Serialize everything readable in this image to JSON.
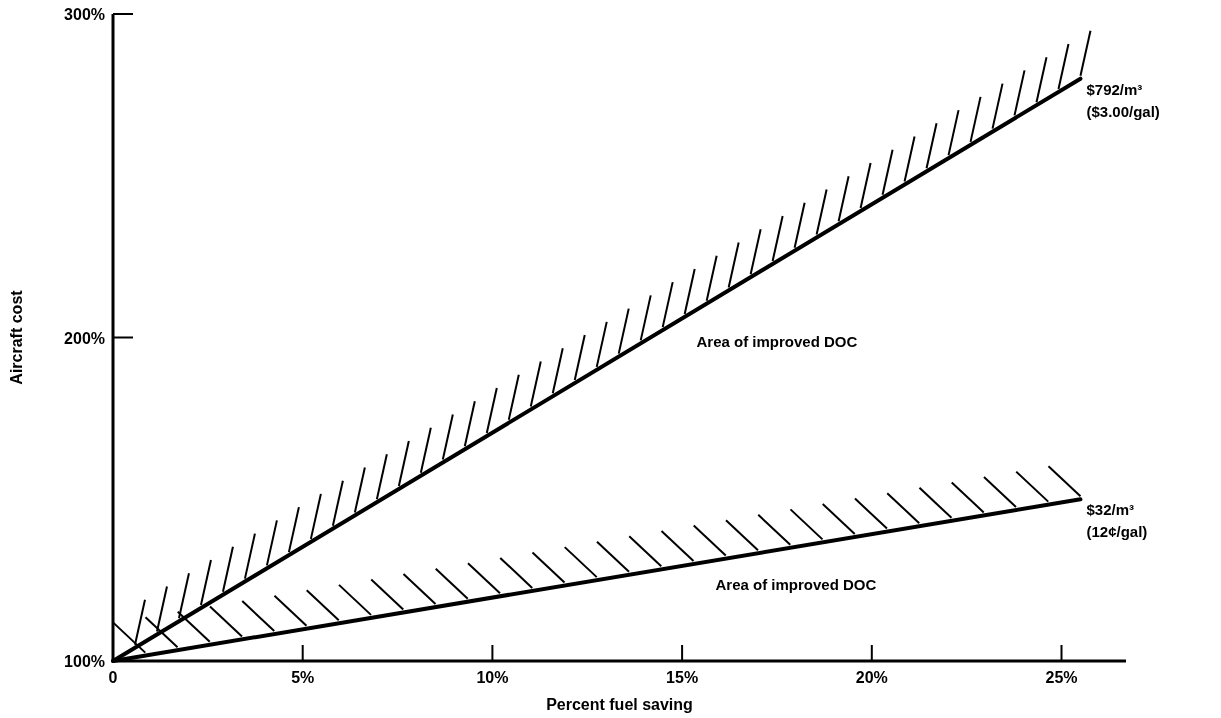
{
  "chart_data": {
    "type": "line",
    "xlabel": "Percent fuel saving",
    "ylabel": "Aircraft cost",
    "xlim": [
      0,
      26.7
    ],
    "ylim": [
      100,
      300
    ],
    "xticks": [
      {
        "value": 0,
        "label": "0"
      },
      {
        "value": 5,
        "label": "5%"
      },
      {
        "value": 10,
        "label": "10%"
      },
      {
        "value": 15,
        "label": "15%"
      },
      {
        "value": 20,
        "label": "20%"
      },
      {
        "value": 25,
        "label": "25%"
      }
    ],
    "yticks": [
      {
        "value": 100,
        "label": "100%"
      },
      {
        "value": 200,
        "label": "200%"
      },
      {
        "value": 300,
        "label": "300%"
      }
    ],
    "x": [
      0,
      25.5
    ],
    "series": [
      {
        "color": "#000000",
        "values": [
          100,
          280
        ]
      },
      {
        "color": "#000000",
        "values": [
          100,
          150
        ]
      }
    ],
    "annotations": [
      "$792/m³",
      "($3.00/gal)",
      "$32/m³",
      "(12¢/gal)",
      "Area of improved DOC",
      "Area of improved DOC"
    ],
    "grid": false,
    "marker": "none",
    "line_style": "solid"
  }
}
